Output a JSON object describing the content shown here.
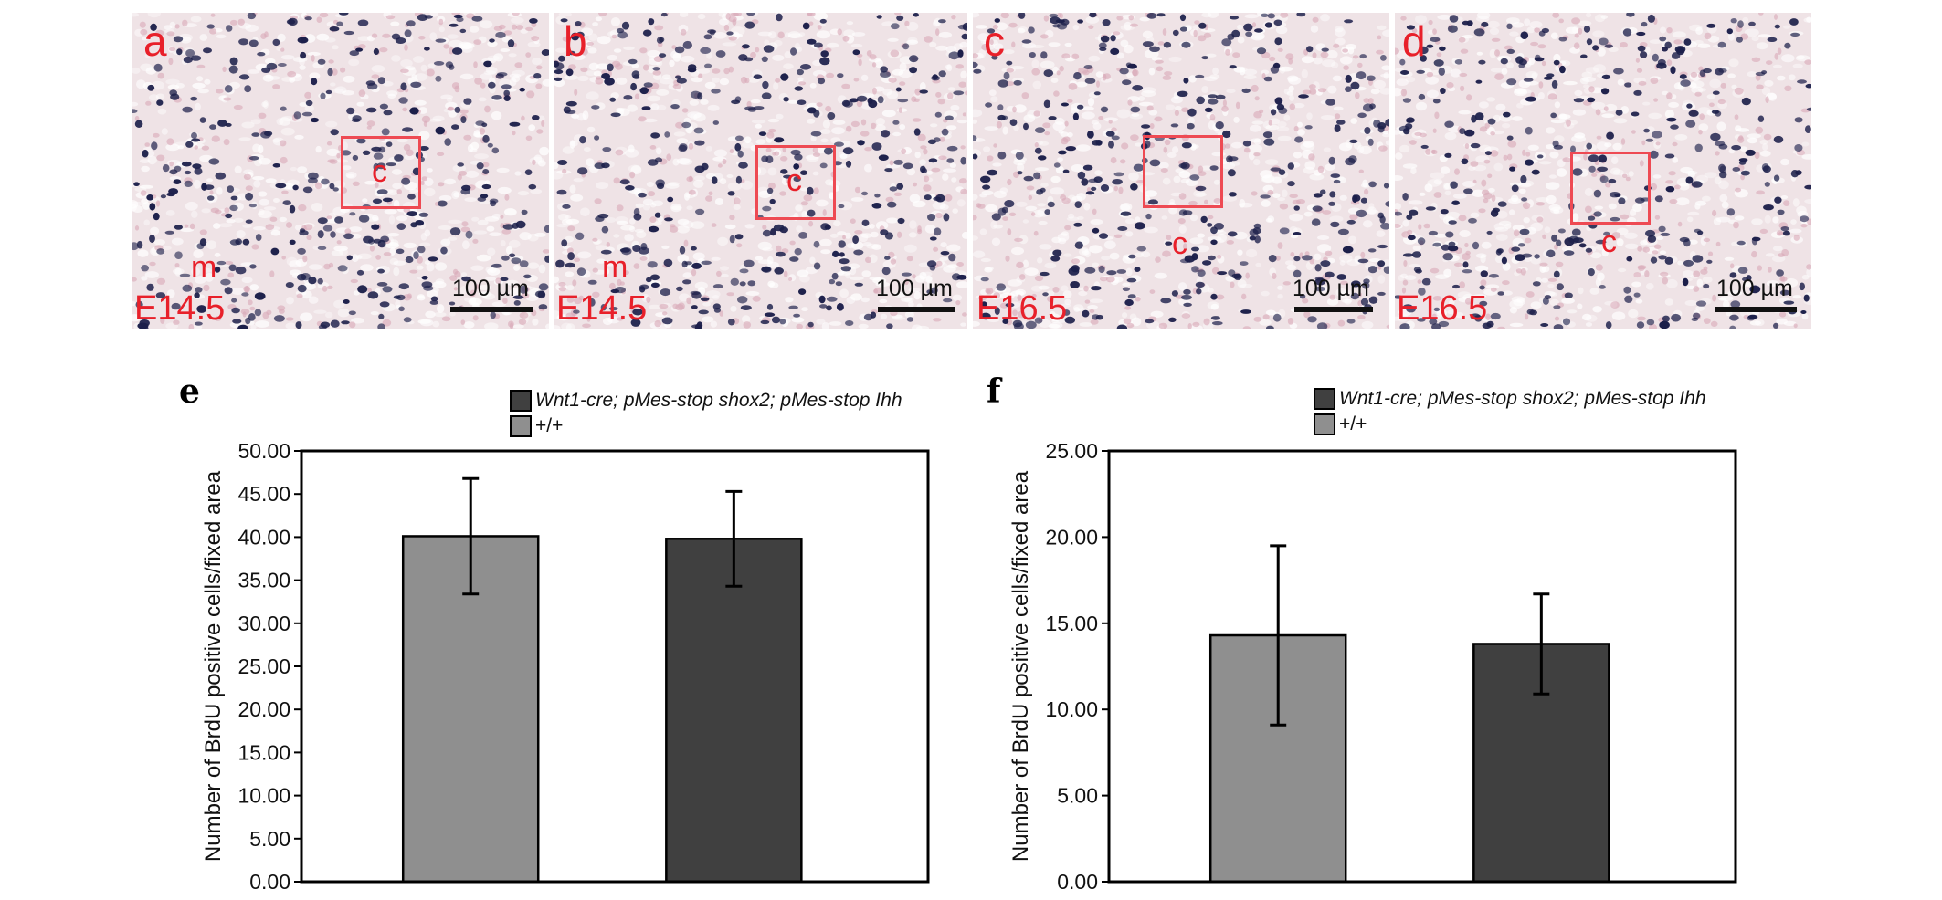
{
  "micrographs": [
    {
      "letter": "a",
      "stage": "E14.5",
      "labels": [
        "c",
        "m"
      ],
      "scale": "100 µm"
    },
    {
      "letter": "b",
      "stage": "E14.5",
      "labels": [
        "c",
        "m"
      ],
      "scale": "100 µm"
    },
    {
      "letter": "c",
      "stage": "E16.5",
      "labels": [
        "c",
        "c"
      ],
      "scale": "100 µm"
    },
    {
      "letter": "d",
      "stage": "E16.5",
      "labels": [
        "c"
      ],
      "scale": "100 µm"
    }
  ],
  "colors": {
    "series_dark": "#404040",
    "series_light": "#8f8f8f",
    "annotation_red": "#e8202a"
  },
  "chart_data": [
    {
      "panel": "e",
      "type": "bar",
      "ylabel": "Number of BrdU positive cells/fixed area",
      "ylim": [
        0,
        50
      ],
      "yticks": [
        "0.00",
        "5.00",
        "10.00",
        "15.00",
        "20.00",
        "25.00",
        "30.00",
        "35.00",
        "40.00",
        "45.00",
        "50.00"
      ],
      "legend": [
        "Wnt1-cre; pMes-stop shox2; pMes-stop Ihh",
        "+/+"
      ],
      "series": [
        {
          "name": "+/+",
          "value": 40.1,
          "error": 6.7
        },
        {
          "name": "Wnt1-cre; pMes-stop shox2; pMes-stop Ihh",
          "value": 39.8,
          "error": 5.5
        }
      ]
    },
    {
      "panel": "f",
      "type": "bar",
      "ylabel": "Number of BrdU positive cells/fixed area",
      "ylim": [
        0,
        25
      ],
      "yticks": [
        "0.00",
        "5.00",
        "10.00",
        "15.00",
        "20.00",
        "25.00"
      ],
      "legend": [
        "Wnt1-cre; pMes-stop shox2; pMes-stop Ihh",
        "+/+"
      ],
      "series": [
        {
          "name": "+/+",
          "value": 14.3,
          "error": 5.2
        },
        {
          "name": "Wnt1-cre; pMes-stop shox2; pMes-stop Ihh",
          "value": 13.8,
          "error": 2.9
        }
      ]
    }
  ]
}
